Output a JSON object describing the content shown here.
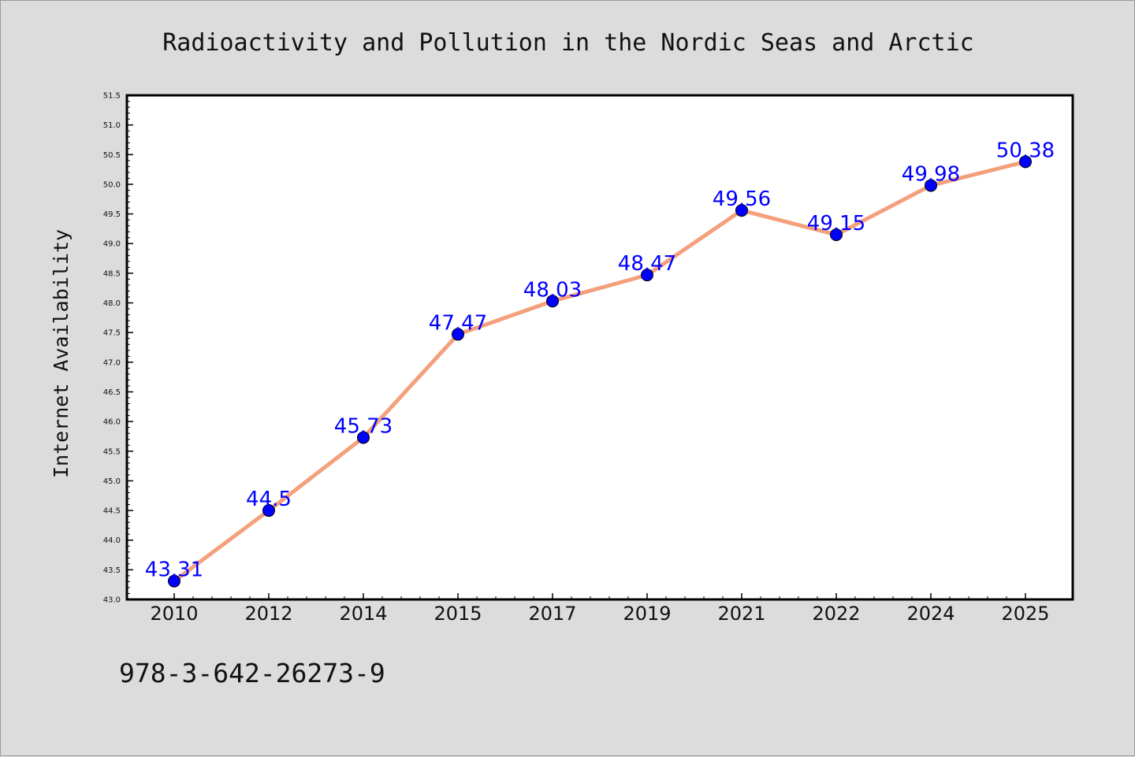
{
  "chart_data": {
    "type": "line",
    "title": "Radioactivity and Pollution in the Nordic Seas and Arctic",
    "xlabel": "",
    "ylabel": "Internet Availability",
    "categories": [
      "2010",
      "2012",
      "2014",
      "2015",
      "2017",
      "2019",
      "2021",
      "2022",
      "2024",
      "2025"
    ],
    "values": [
      43.31,
      44.5,
      45.73,
      47.47,
      48.03,
      48.47,
      49.56,
      49.15,
      49.98,
      50.38
    ],
    "data_labels": [
      "43.31",
      "44.5",
      "45.73",
      "47.47",
      "48.03",
      "48.47",
      "49.56",
      "49.15",
      "49.98",
      "50.38"
    ],
    "ylim": [
      43.0,
      51.5
    ],
    "yticks": [
      "43.0",
      "43.5",
      "44.0",
      "44.5",
      "45.0",
      "45.5",
      "46.0",
      "46.5",
      "47.0",
      "47.5",
      "48.0",
      "48.5",
      "49.0",
      "49.5",
      "50.0",
      "50.5",
      "51.0",
      "51.5"
    ],
    "grid": false,
    "legend": "none",
    "line_color": "#f4a07c",
    "marker_color": "#0000ff",
    "label_color": "#0000ff"
  },
  "footer": {
    "isbn": "978-3-642-26273-9"
  },
  "colors": {
    "background": "#dcdcdc",
    "plot_background": "#ffffff"
  }
}
